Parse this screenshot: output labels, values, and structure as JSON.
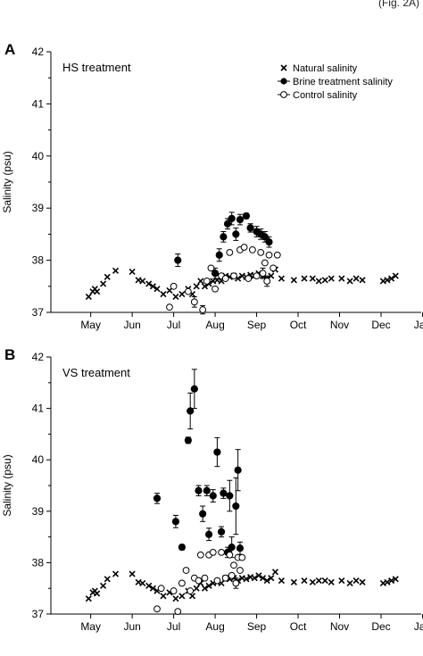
{
  "page": {
    "caption_fragment": "(Fig. 2A)"
  },
  "chart_data": [
    {
      "type": "scatter",
      "panel_label": "A",
      "title": "HS treatment",
      "xlabel": "",
      "ylabel": "Salinity (psu)",
      "ylim": [
        37,
        42
      ],
      "yticks": [
        37,
        38,
        39,
        40,
        41,
        42
      ],
      "xlim": [
        0,
        8.8
      ],
      "xticks": [
        1,
        2,
        3,
        4,
        5,
        6,
        7,
        8
      ],
      "xtick_labels": [
        "May",
        "Jun",
        "Jul",
        "Aug",
        "Sep",
        "Oct",
        "Nov",
        "Dec",
        "Jan"
      ],
      "xtick_positions": [
        1,
        2,
        3,
        4,
        5,
        6,
        7,
        8,
        9
      ],
      "legend": {
        "placement": "top-right",
        "entries": [
          "Natural salinity",
          "Brine treatment salinity",
          "Control salinity"
        ]
      },
      "series": [
        {
          "name": "Natural salinity",
          "marker": "x",
          "points": [
            [
              0.9,
              37.3
            ],
            [
              1.0,
              37.4
            ],
            [
              1.05,
              37.45
            ],
            [
              1.1,
              37.4
            ],
            [
              1.25,
              37.55
            ],
            [
              1.35,
              37.68
            ],
            [
              1.55,
              37.8
            ],
            [
              1.95,
              37.78
            ],
            [
              2.1,
              37.62
            ],
            [
              2.2,
              37.6
            ],
            [
              2.35,
              37.55
            ],
            [
              2.45,
              37.5
            ],
            [
              2.55,
              37.45
            ],
            [
              2.7,
              37.35
            ],
            [
              2.85,
              37.42
            ],
            [
              3.0,
              37.3
            ],
            [
              3.15,
              37.35
            ],
            [
              3.3,
              37.45
            ],
            [
              3.4,
              37.35
            ],
            [
              3.5,
              37.5
            ],
            [
              3.6,
              37.6
            ],
            [
              3.7,
              37.5
            ],
            [
              3.8,
              37.55
            ],
            [
              3.9,
              37.6
            ],
            [
              4.0,
              37.62
            ],
            [
              4.1,
              37.6
            ],
            [
              4.2,
              37.7
            ],
            [
              4.3,
              37.68
            ],
            [
              4.4,
              37.7
            ],
            [
              4.5,
              37.65
            ],
            [
              4.6,
              37.7
            ],
            [
              4.7,
              37.68
            ],
            [
              4.8,
              37.72
            ],
            [
              4.9,
              37.7
            ],
            [
              5.0,
              37.75
            ],
            [
              5.1,
              37.7
            ],
            [
              5.2,
              37.65
            ],
            [
              5.3,
              37.7
            ],
            [
              5.4,
              37.82
            ],
            [
              5.55,
              37.65
            ],
            [
              5.85,
              37.62
            ],
            [
              6.1,
              37.65
            ],
            [
              6.3,
              37.65
            ],
            [
              6.45,
              37.6
            ],
            [
              6.6,
              37.62
            ],
            [
              6.75,
              37.65
            ],
            [
              7.0,
              37.65
            ],
            [
              7.2,
              37.6
            ],
            [
              7.35,
              37.65
            ],
            [
              7.5,
              37.62
            ],
            [
              8.0,
              37.6
            ],
            [
              8.1,
              37.62
            ],
            [
              8.2,
              37.65
            ],
            [
              8.3,
              37.7
            ]
          ]
        },
        {
          "name": "Brine treatment salinity",
          "marker": "filled-circle",
          "points": [
            [
              3.05,
              38.0,
              0.12
            ],
            [
              3.95,
              37.75,
              0.1
            ],
            [
              4.05,
              38.1,
              0.12
            ],
            [
              4.15,
              38.45,
              0.1
            ],
            [
              4.25,
              38.7,
              0.1
            ],
            [
              4.35,
              38.8,
              0.12
            ],
            [
              4.45,
              38.5,
              0.12
            ],
            [
              4.55,
              38.78,
              0.1
            ],
            [
              4.7,
              38.85,
              0.05
            ],
            [
              4.8,
              38.62,
              0.08
            ],
            [
              4.95,
              38.55,
              0.1
            ],
            [
              5.05,
              38.5,
              0.1
            ],
            [
              5.15,
              38.45,
              0.1
            ],
            [
              5.25,
              38.35,
              0.1
            ]
          ]
        },
        {
          "name": "Control salinity",
          "marker": "open-circle",
          "points": [
            [
              2.85,
              37.1,
              0
            ],
            [
              2.95,
              37.5,
              0
            ],
            [
              3.3,
              37.4,
              0
            ],
            [
              3.45,
              37.2,
              0.1
            ],
            [
              3.65,
              37.05,
              0.08
            ],
            [
              3.75,
              37.6,
              0
            ],
            [
              3.85,
              37.85,
              0
            ],
            [
              3.95,
              37.45,
              0
            ],
            [
              4.1,
              37.7,
              0
            ],
            [
              4.2,
              37.65,
              0
            ],
            [
              4.3,
              38.15,
              0
            ],
            [
              4.4,
              37.7,
              0
            ],
            [
              4.55,
              38.2,
              0
            ],
            [
              4.65,
              38.25,
              0
            ],
            [
              4.75,
              37.65,
              0
            ],
            [
              4.85,
              38.2,
              0
            ],
            [
              4.95,
              37.7,
              0
            ],
            [
              5.05,
              38.15,
              0
            ],
            [
              5.1,
              37.75,
              0.1
            ],
            [
              5.15,
              37.95,
              0
            ],
            [
              5.2,
              37.6,
              0.1
            ],
            [
              5.25,
              38.1,
              0
            ],
            [
              5.35,
              37.85,
              0
            ],
            [
              5.45,
              38.1,
              0
            ]
          ]
        }
      ]
    },
    {
      "type": "scatter",
      "panel_label": "B",
      "title": "VS treatment",
      "xlabel": "",
      "ylabel": "Salinity (psu)",
      "ylim": [
        37,
        42
      ],
      "yticks": [
        37,
        38,
        39,
        40,
        41,
        42
      ],
      "xlim": [
        0,
        8.8
      ],
      "xtick_labels": [
        "May",
        "Jun",
        "Jul",
        "Aug",
        "Sep",
        "Oct",
        "Nov",
        "Dec",
        "Jan"
      ],
      "xtick_positions": [
        1,
        2,
        3,
        4,
        5,
        6,
        7,
        8,
        9
      ],
      "series": [
        {
          "name": "Natural salinity",
          "marker": "x",
          "points": [
            [
              0.9,
              37.3
            ],
            [
              1.0,
              37.42
            ],
            [
              1.05,
              37.45
            ],
            [
              1.1,
              37.4
            ],
            [
              1.25,
              37.55
            ],
            [
              1.35,
              37.68
            ],
            [
              1.55,
              37.78
            ],
            [
              1.95,
              37.78
            ],
            [
              2.1,
              37.62
            ],
            [
              2.2,
              37.6
            ],
            [
              2.35,
              37.55
            ],
            [
              2.45,
              37.5
            ],
            [
              2.55,
              37.45
            ],
            [
              2.7,
              37.35
            ],
            [
              2.85,
              37.42
            ],
            [
              3.0,
              37.3
            ],
            [
              3.15,
              37.35
            ],
            [
              3.3,
              37.45
            ],
            [
              3.4,
              37.35
            ],
            [
              3.5,
              37.5
            ],
            [
              3.6,
              37.6
            ],
            [
              3.7,
              37.5
            ],
            [
              3.8,
              37.55
            ],
            [
              3.9,
              37.6
            ],
            [
              4.0,
              37.62
            ],
            [
              4.1,
              37.6
            ],
            [
              4.2,
              37.7
            ],
            [
              4.3,
              37.68
            ],
            [
              4.4,
              37.7
            ],
            [
              4.5,
              37.65
            ],
            [
              4.6,
              37.7
            ],
            [
              4.7,
              37.68
            ],
            [
              4.8,
              37.72
            ],
            [
              4.9,
              37.7
            ],
            [
              5.0,
              37.75
            ],
            [
              5.1,
              37.7
            ],
            [
              5.2,
              37.65
            ],
            [
              5.3,
              37.7
            ],
            [
              5.4,
              37.82
            ],
            [
              5.55,
              37.65
            ],
            [
              5.85,
              37.62
            ],
            [
              6.1,
              37.65
            ],
            [
              6.3,
              37.62
            ],
            [
              6.45,
              37.65
            ],
            [
              6.6,
              37.65
            ],
            [
              6.75,
              37.62
            ],
            [
              7.0,
              37.65
            ],
            [
              7.2,
              37.6
            ],
            [
              7.35,
              37.65
            ],
            [
              7.5,
              37.62
            ],
            [
              8.0,
              37.6
            ],
            [
              8.1,
              37.62
            ],
            [
              8.2,
              37.65
            ],
            [
              8.3,
              37.68
            ]
          ]
        },
        {
          "name": "Brine treatment salinity",
          "marker": "filled-circle",
          "points": [
            [
              2.55,
              39.25,
              0.1
            ],
            [
              3.0,
              38.8,
              0.12
            ],
            [
              3.15,
              38.3,
              0.05
            ],
            [
              3.3,
              40.38,
              0.06
            ],
            [
              3.35,
              40.95,
              0.35
            ],
            [
              3.45,
              41.38,
              0.38
            ],
            [
              3.55,
              39.4,
              0.1
            ],
            [
              3.65,
              38.95,
              0.15
            ],
            [
              3.75,
              39.4,
              0.1
            ],
            [
              3.8,
              38.55,
              0.12
            ],
            [
              3.9,
              39.3,
              0.12
            ],
            [
              4.0,
              40.15,
              0.28
            ],
            [
              4.1,
              38.6,
              0.1
            ],
            [
              4.15,
              39.35,
              0.1
            ],
            [
              4.25,
              38.2,
              0.1
            ],
            [
              4.3,
              39.3,
              0.3
            ],
            [
              4.35,
              38.3,
              0.2
            ],
            [
              4.45,
              39.1,
              0.55
            ],
            [
              4.5,
              39.8,
              0.4
            ],
            [
              4.55,
              38.28,
              0.12
            ]
          ]
        },
        {
          "name": "Control salinity",
          "marker": "open-circle",
          "points": [
            [
              2.55,
              37.1,
              0
            ],
            [
              2.65,
              37.5,
              0
            ],
            [
              2.95,
              37.45,
              0
            ],
            [
              3.05,
              37.05,
              0
            ],
            [
              3.15,
              37.6,
              0
            ],
            [
              3.25,
              37.85,
              0
            ],
            [
              3.35,
              37.45,
              0
            ],
            [
              3.45,
              37.7,
              0
            ],
            [
              3.55,
              37.65,
              0
            ],
            [
              3.6,
              38.15,
              0
            ],
            [
              3.7,
              37.7,
              0
            ],
            [
              3.8,
              38.15,
              0
            ],
            [
              3.9,
              38.2,
              0
            ],
            [
              4.0,
              37.65,
              0
            ],
            [
              4.1,
              38.2,
              0
            ],
            [
              4.2,
              37.7,
              0
            ],
            [
              4.3,
              38.15,
              0
            ],
            [
              4.35,
              37.75,
              0
            ],
            [
              4.4,
              37.95,
              0
            ],
            [
              4.45,
              37.6,
              0.1
            ],
            [
              4.5,
              38.1,
              0
            ],
            [
              4.55,
              37.85,
              0
            ],
            [
              4.6,
              38.1,
              0
            ]
          ]
        }
      ]
    }
  ]
}
